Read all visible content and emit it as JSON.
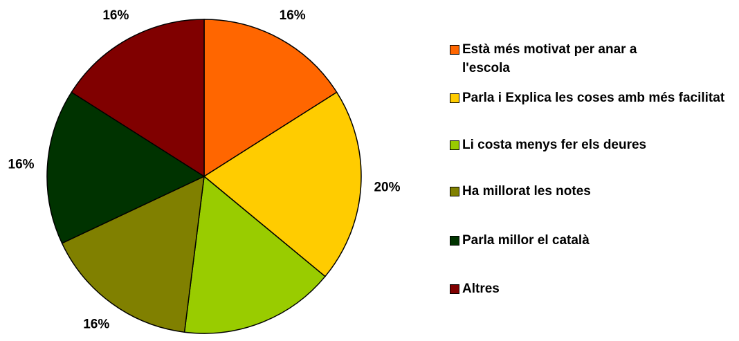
{
  "chart_data": {
    "type": "pie",
    "categories": [
      "Està més motivat per anar a l'escola",
      "Parla i Explica les coses amb més facilitat",
      "Li costa menys fer els deures",
      "Ha millorat les notes",
      "Parla millor el català",
      "Altres"
    ],
    "values": [
      16,
      20,
      16,
      16,
      16,
      16
    ],
    "value_labels": [
      "16%",
      "20%",
      "16%",
      "16%",
      "16%",
      "16%"
    ],
    "colors": [
      "#FF6600",
      "#FFCC00",
      "#99CC00",
      "#808000",
      "#003300",
      "#800000"
    ],
    "legend": "right"
  }
}
